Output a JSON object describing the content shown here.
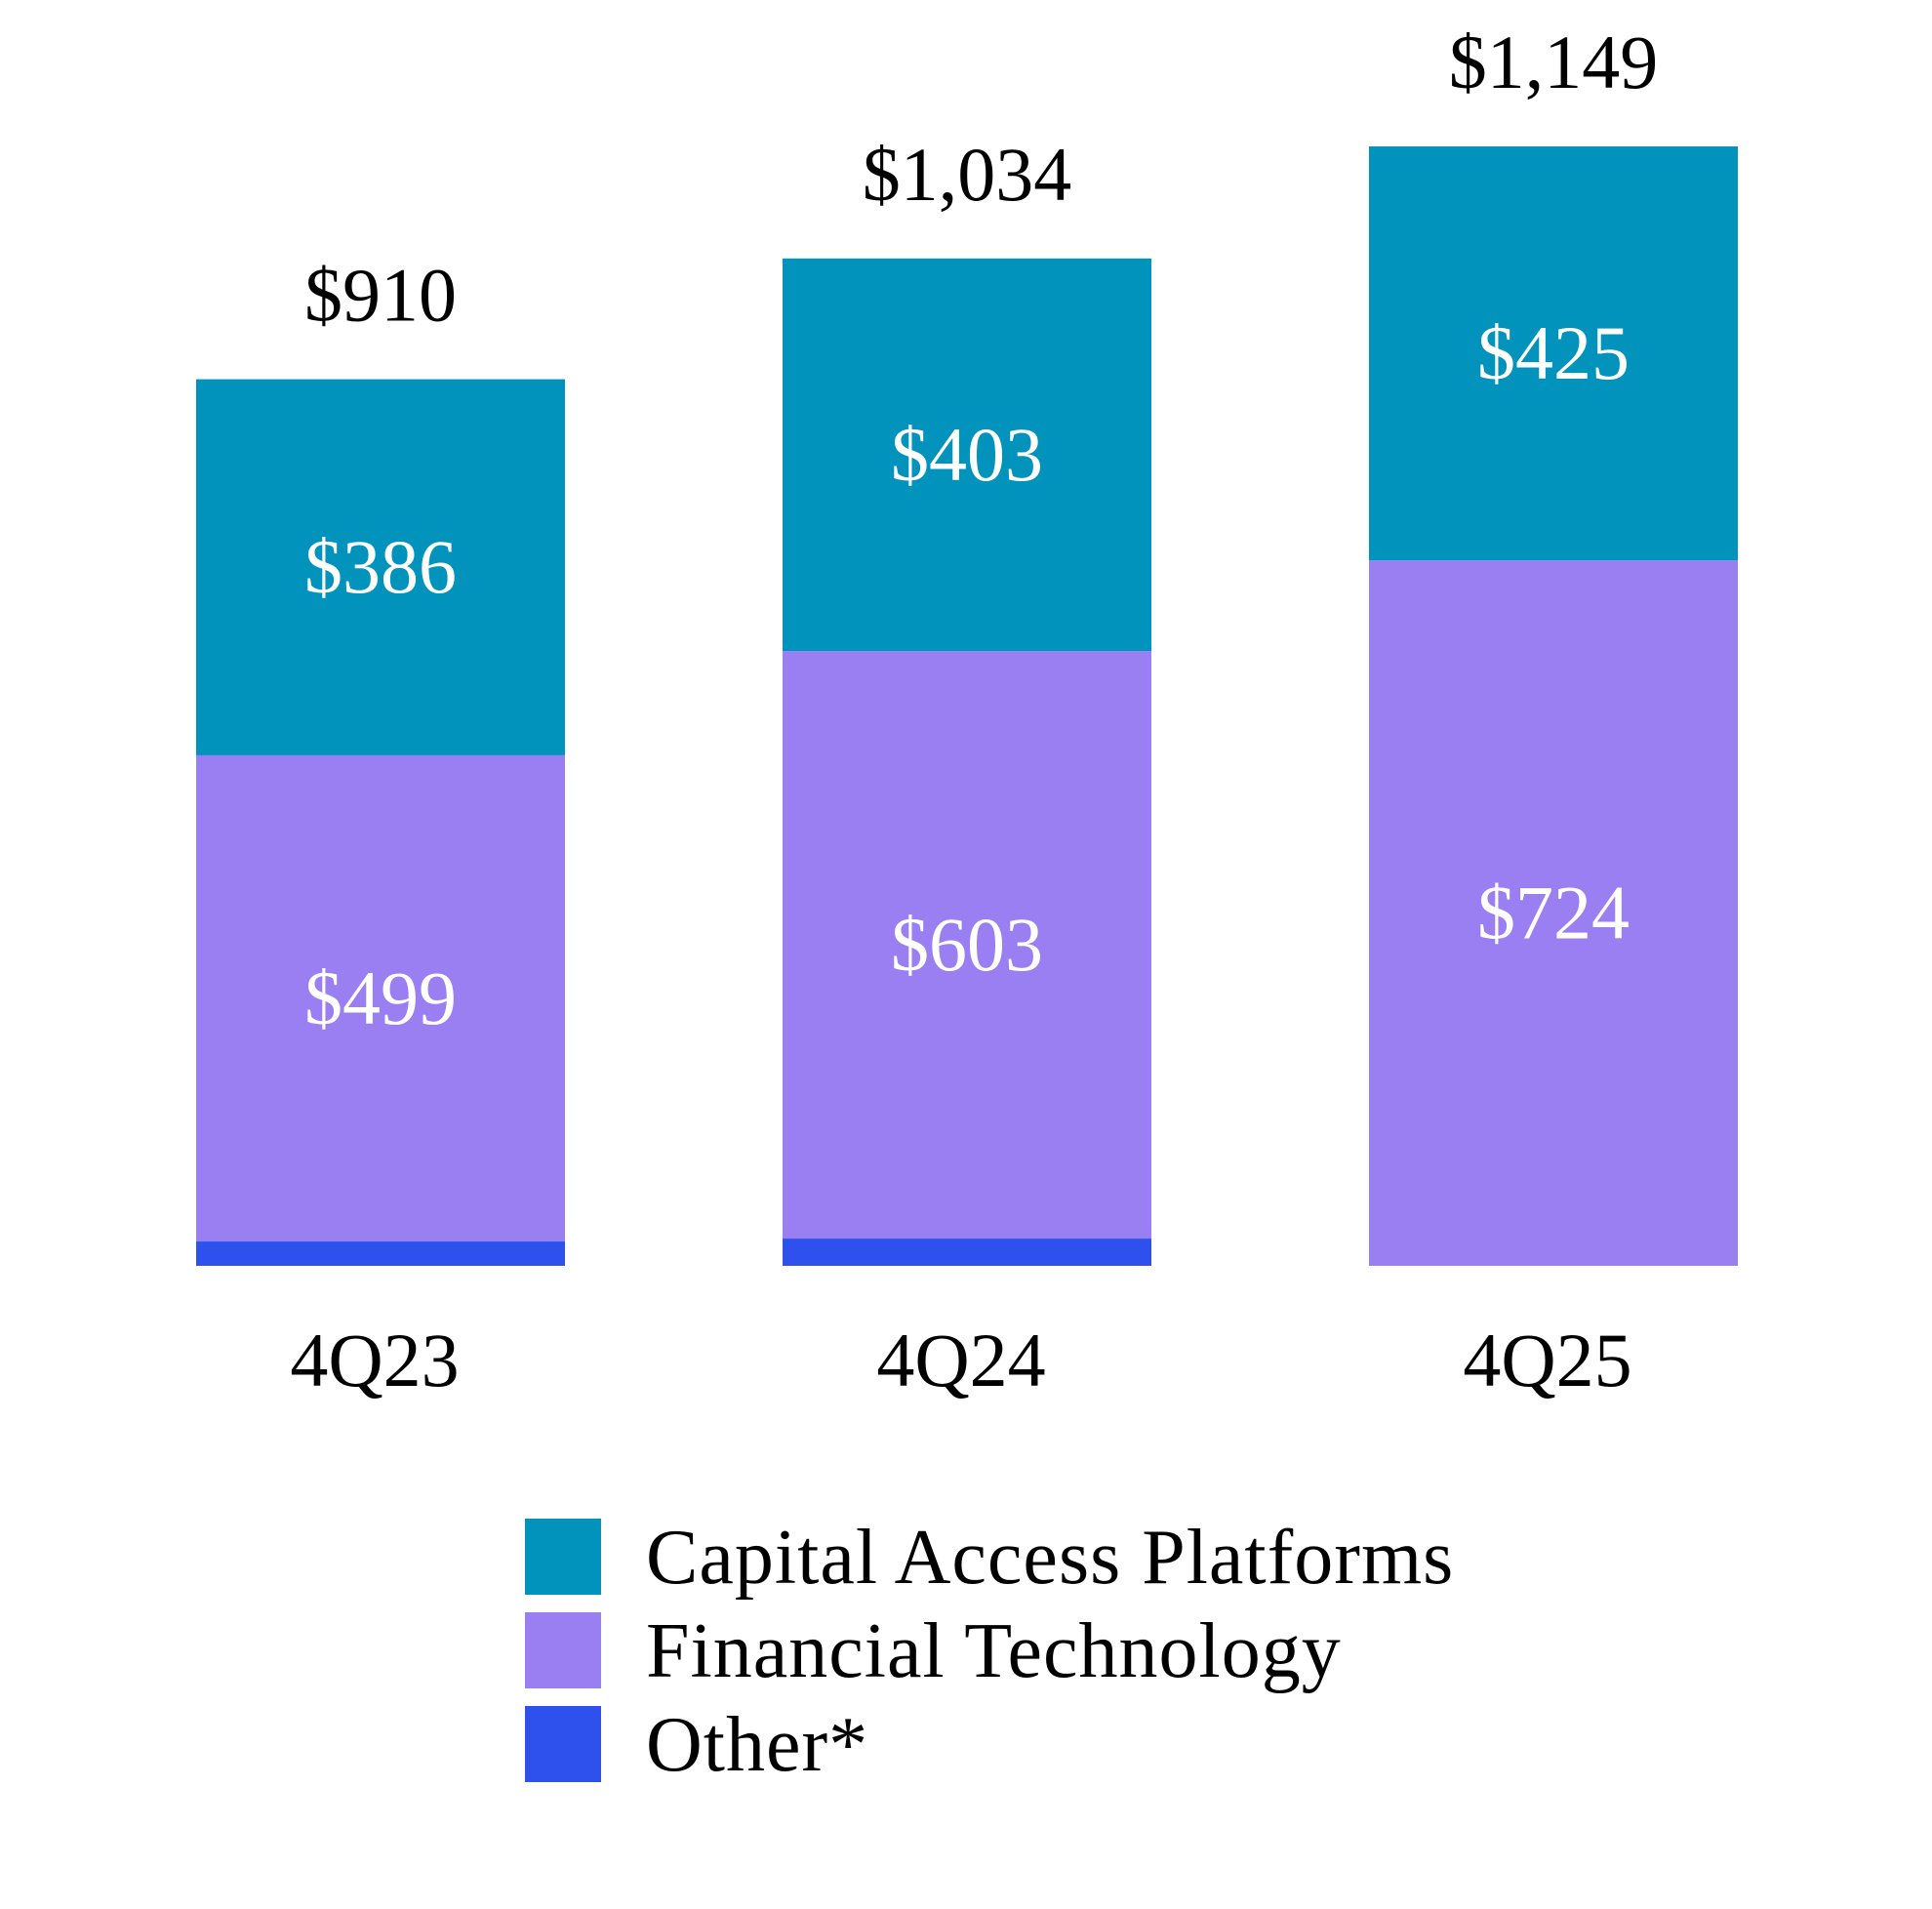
{
  "chart_data": {
    "type": "bar",
    "stacked": true,
    "categories": [
      "4Q23",
      "4Q24",
      "4Q25"
    ],
    "series": [
      {
        "name": "Other*",
        "color": "#2e50ec",
        "values": [
          25,
          28,
          0
        ]
      },
      {
        "name": "Financial Technology",
        "color": "#9a7ff3",
        "values": [
          499,
          603,
          724
        ]
      },
      {
        "name": "Capital Access Platforms",
        "color": "#0193bb",
        "values": [
          386,
          403,
          425
        ]
      }
    ],
    "segment_labels": [
      {
        "series": "Financial Technology",
        "labels": [
          "$499",
          "$603",
          "$724"
        ]
      },
      {
        "series": "Capital Access Platforms",
        "labels": [
          "$386",
          "$403",
          "$425"
        ]
      }
    ],
    "totals": [
      910,
      1034,
      1149
    ],
    "total_labels": [
      "$910",
      "$1,034",
      "$1,149"
    ],
    "legend": [
      {
        "label": "Capital Access Platforms",
        "color": "#0193bb"
      },
      {
        "label": "Financial Technology",
        "color": "#9a7ff3"
      },
      {
        "label": "Other*",
        "color": "#2e50ec"
      }
    ],
    "legend_position": "bottom",
    "grid": false,
    "ylim": [
      0,
      1149
    ]
  }
}
